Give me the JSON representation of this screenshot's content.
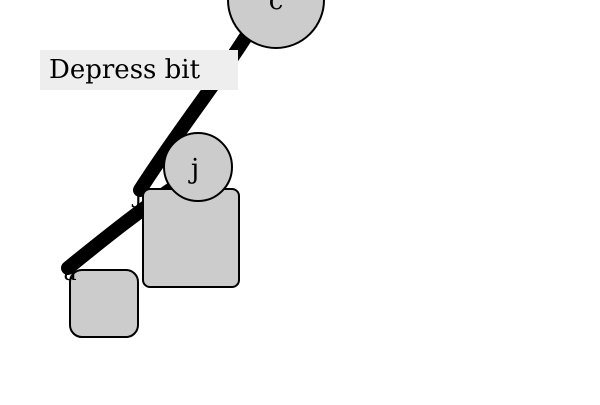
{
  "diagram": {
    "nodes": {
      "c": {
        "label": "c"
      },
      "j": {
        "label": "j"
      }
    },
    "edge_label": "Depress bit",
    "endpoint_labels": {
      "a": "a",
      "j": "J"
    },
    "colors": {
      "node_fill": "#cccccc",
      "node_stroke": "#000000",
      "edge": "#000000",
      "label_background": "#eeeeee"
    }
  }
}
